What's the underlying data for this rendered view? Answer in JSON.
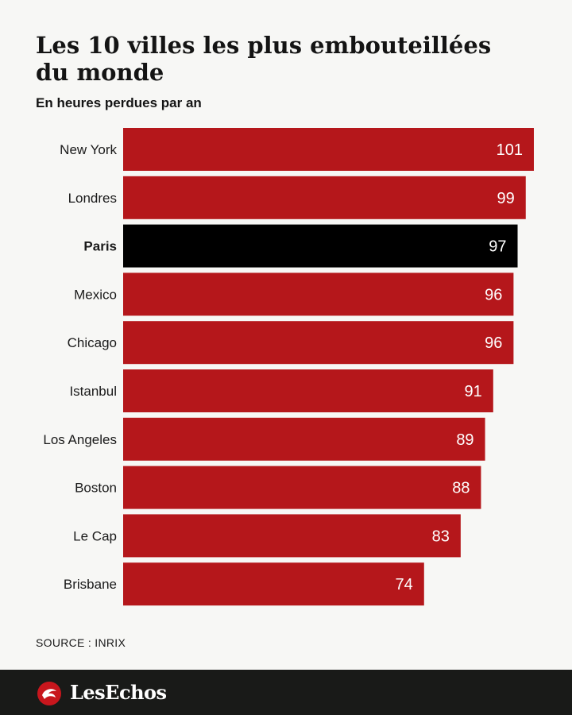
{
  "header": {
    "title": "Les 10 villes les plus embouteillées du monde",
    "subtitle": "En heures perdues par an"
  },
  "source": "SOURCE : INRIX",
  "footer": {
    "brand": "LesEchos"
  },
  "colors": {
    "bar": "#b5171b",
    "highlight": "#000000",
    "label_text": "#ffffff",
    "footer_bg": "#191a18"
  },
  "chart_data": {
    "type": "bar",
    "orientation": "horizontal",
    "title": "Les 10 villes les plus embouteillées du monde",
    "subtitle": "En heures perdues par an",
    "categories": [
      "New York",
      "Londres",
      "Paris",
      "Mexico",
      "Chicago",
      "Istanbul",
      "Los Angeles",
      "Boston",
      "Le Cap",
      "Brisbane"
    ],
    "values": [
      101,
      99,
      97,
      96,
      96,
      91,
      89,
      88,
      83,
      74
    ],
    "highlight": "Paris",
    "xlabel": "",
    "ylabel": "",
    "xlim": [
      0,
      101
    ],
    "grid": false,
    "legend": "none"
  }
}
